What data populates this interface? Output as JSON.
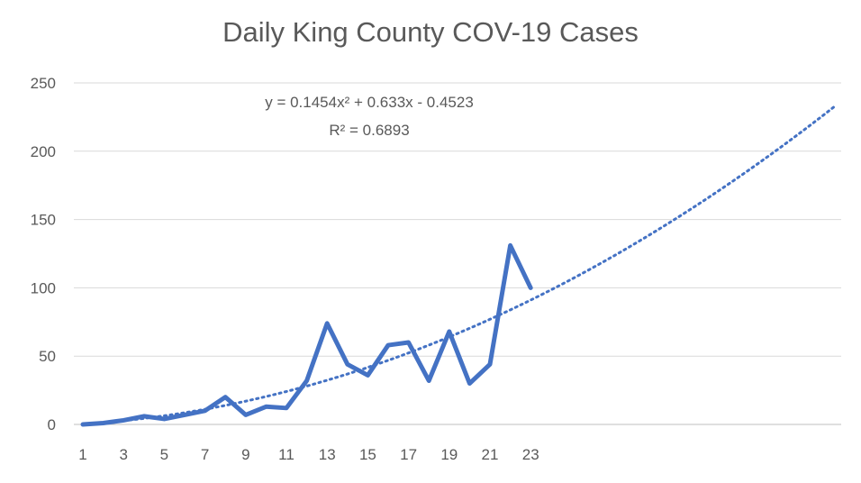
{
  "chart_data": {
    "type": "line",
    "title": "Daily King County COV-19 Cases",
    "xlabel": "",
    "ylabel": "",
    "ylim": [
      0,
      250
    ],
    "xlim": [
      1,
      38
    ],
    "x_tick_labels": [
      "1",
      "3",
      "5",
      "7",
      "9",
      "11",
      "13",
      "15",
      "17",
      "19",
      "21",
      "23"
    ],
    "y_tick_labels": [
      "0",
      "50",
      "100",
      "150",
      "200",
      "250"
    ],
    "grid": true,
    "legend": "none",
    "series": [
      {
        "x": [
          1,
          2,
          3,
          4,
          5,
          6,
          7,
          8,
          9,
          10,
          11,
          12,
          13,
          14,
          15,
          16,
          17,
          18,
          19,
          20,
          21,
          22,
          23
        ],
        "values": [
          0,
          1,
          3,
          6,
          4,
          7,
          10,
          20,
          7,
          13,
          12,
          32,
          74,
          44,
          36,
          58,
          60,
          32,
          68,
          30,
          44,
          131,
          100
        ],
        "color": "#4472C4"
      }
    ],
    "trendline": {
      "type": "polynomial",
      "order": 2,
      "coefficients": [
        0.1454,
        0.633,
        -0.4523
      ],
      "x_range": [
        1,
        38
      ],
      "style": "dotted",
      "color": "#4472C4",
      "equation_text": "y = 0.1454x² + 0.633x - 0.4523",
      "r_squared_text": "R² = 0.6893"
    }
  },
  "colors": {
    "gridline": "#D9D9D9",
    "axis": "#BFBFBF",
    "text": "#595959"
  }
}
